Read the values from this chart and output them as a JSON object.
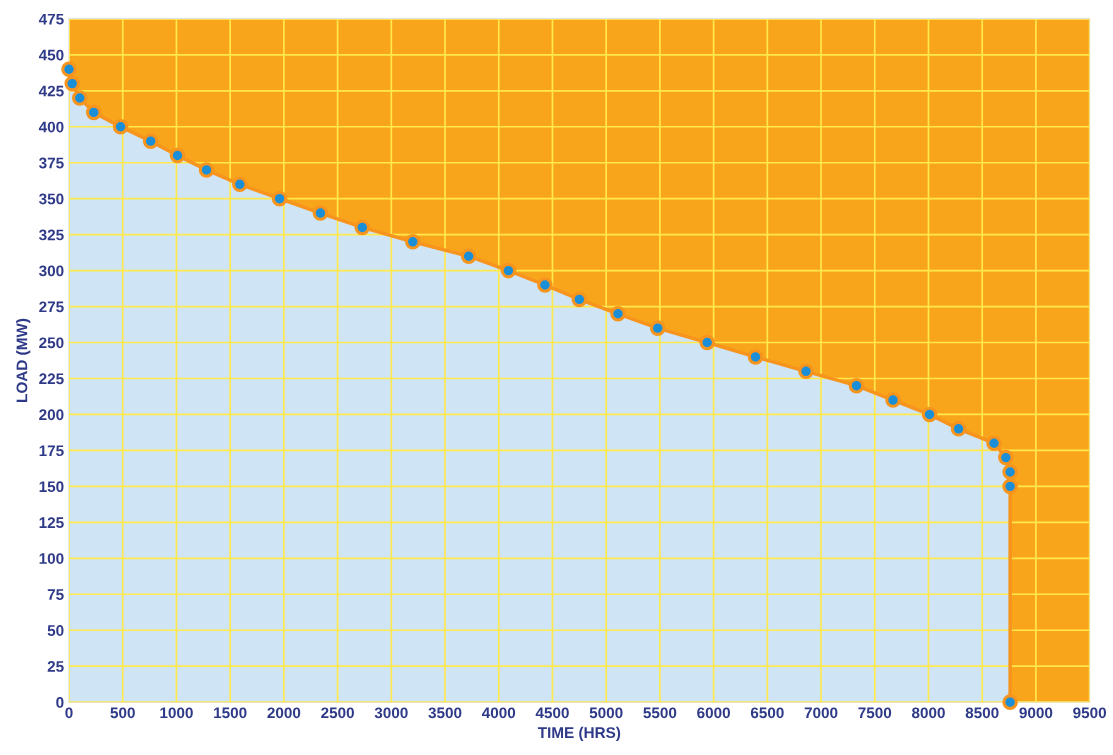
{
  "chart_data": {
    "type": "area",
    "xlabel": "TIME (HRS)",
    "ylabel": "LOAD (MW)",
    "x": [
      0,
      30,
      100,
      230,
      480,
      760,
      1010,
      1280,
      1590,
      1960,
      2340,
      2730,
      3200,
      3720,
      4090,
      4430,
      4750,
      5110,
      5480,
      5940,
      6390,
      6860,
      7330,
      7670,
      8010,
      8280,
      8610,
      8720,
      8760,
      8760,
      8760
    ],
    "series": [
      {
        "color": "#f7941d",
        "values": [
          440,
          430,
          420,
          410,
          400,
          390,
          380,
          370,
          360,
          350,
          340,
          330,
          320,
          310,
          300,
          290,
          280,
          270,
          260,
          250,
          240,
          230,
          220,
          210,
          200,
          190,
          180,
          170,
          160,
          150,
          0
        ]
      }
    ],
    "xlim": [
      0,
      9500
    ],
    "ylim": [
      0,
      475
    ],
    "xticks": [
      0,
      500,
      1000,
      1500,
      2000,
      2500,
      3000,
      3500,
      4000,
      4500,
      5000,
      5500,
      6000,
      6500,
      7000,
      7500,
      8000,
      8500,
      9000,
      9500
    ],
    "yticks": [
      0,
      25,
      50,
      75,
      100,
      125,
      150,
      175,
      200,
      225,
      250,
      275,
      300,
      325,
      350,
      375,
      400,
      425,
      450,
      475
    ],
    "bands": [
      {
        "axis": "y",
        "from": 0,
        "to": 475,
        "color": "#f9a51c"
      }
    ],
    "grid": true,
    "marker": "circle",
    "line_style": "solid"
  }
}
